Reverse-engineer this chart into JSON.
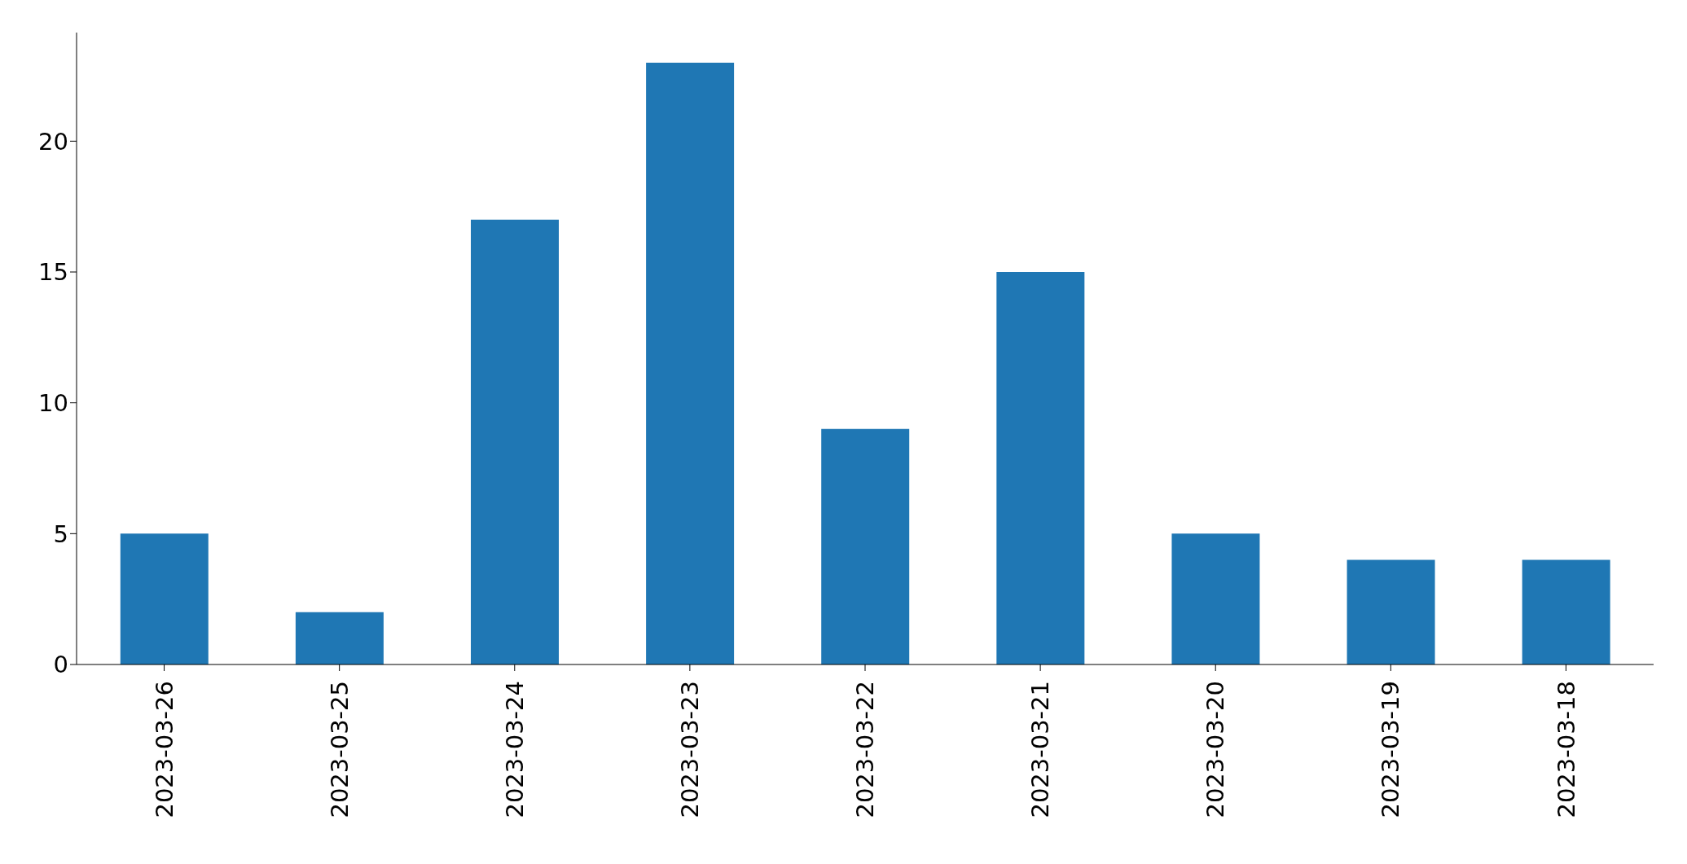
{
  "chart_data": {
    "type": "bar",
    "categories": [
      "2023-03-26",
      "2023-03-25",
      "2023-03-24",
      "2023-03-23",
      "2023-03-22",
      "2023-03-21",
      "2023-03-20",
      "2023-03-19",
      "2023-03-18"
    ],
    "values": [
      5,
      2,
      17,
      23,
      9,
      15,
      5,
      4,
      4
    ],
    "color": "#1f77b4",
    "ylim": [
      0,
      24.15
    ],
    "yticks": [
      0,
      5,
      10,
      15,
      20
    ],
    "grid": false,
    "legend": false
  }
}
